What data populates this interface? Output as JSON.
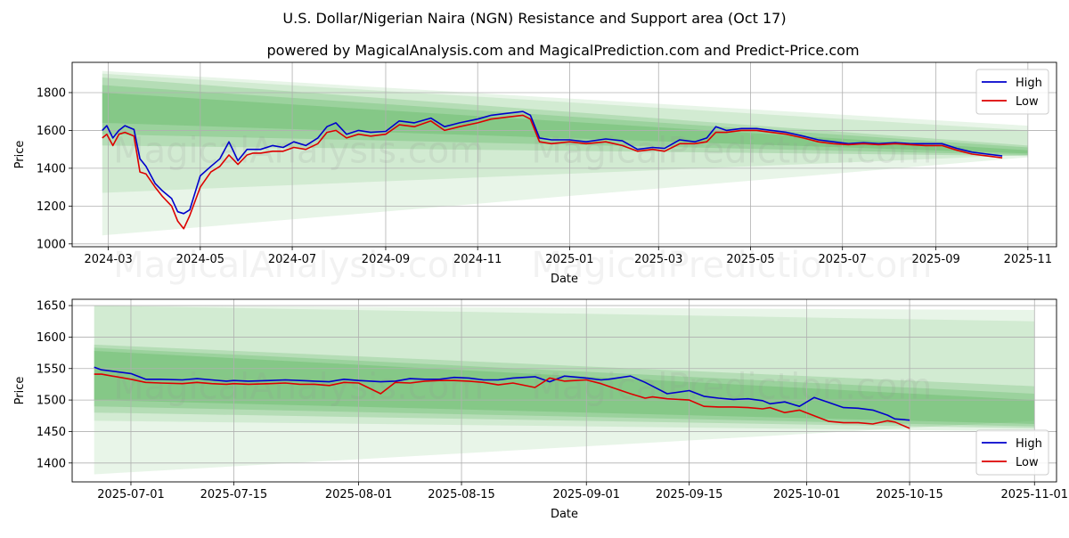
{
  "title": "U.S. Dollar/Nigerian Naira (NGN) Resistance and Support area (Oct 17)",
  "subtitle": "powered by MagicalAnalysis.com and MagicalPrediction.com and Predict-Price.com",
  "watermarks": [
    "MagicalAnalysis.com",
    "MagicalPrediction.com"
  ],
  "colors": {
    "high": "#0000cc",
    "low": "#dd0000",
    "band": "#4caf50",
    "grid": "#b0b0b0"
  },
  "chart_data": [
    {
      "type": "line",
      "panel": "top",
      "xlabel": "Date",
      "ylabel": "Price",
      "xlim": [
        "2024-02-06",
        "2025-11-20"
      ],
      "ylim": [
        985,
        1960
      ],
      "x_ticks": [
        "2024-03",
        "2024-05",
        "2024-07",
        "2024-09",
        "2024-11",
        "2025-01",
        "2025-03",
        "2025-05",
        "2025-07",
        "2025-09",
        "2025-11"
      ],
      "y_ticks": [
        1000,
        1200,
        1400,
        1600,
        1800
      ],
      "legend": {
        "position": "top-right",
        "entries": [
          "High",
          "Low"
        ]
      },
      "bands": [
        {
          "x0": "2024-02-26",
          "x1": "2025-11-01",
          "top": [
            1915,
            1625
          ],
          "bottom": [
            1045,
            1458
          ]
        },
        {
          "x0": "2024-02-26",
          "x1": "2025-11-01",
          "top": [
            1900,
            1600
          ],
          "bottom": [
            1270,
            1470
          ]
        },
        {
          "x0": "2024-02-26",
          "x1": "2025-11-01",
          "top": [
            1880,
            1520
          ],
          "bottom": [
            1520,
            1465
          ]
        },
        {
          "x0": "2024-02-26",
          "x1": "2025-11-01",
          "top": [
            1840,
            1510
          ],
          "bottom": [
            1580,
            1470
          ]
        },
        {
          "x0": "2024-02-26",
          "x1": "2025-11-01",
          "top": [
            1800,
            1495
          ],
          "bottom": [
            1640,
            1478
          ]
        }
      ],
      "series": [
        {
          "name": "High",
          "x": [
            "2024-02-26",
            "2024-02-29",
            "2024-03-04",
            "2024-03-08",
            "2024-03-12",
            "2024-03-18",
            "2024-03-22",
            "2024-03-26",
            "2024-04-01",
            "2024-04-06",
            "2024-04-12",
            "2024-04-16",
            "2024-04-20",
            "2024-04-24",
            "2024-05-01",
            "2024-05-08",
            "2024-05-14",
            "2024-05-20",
            "2024-05-26",
            "2024-06-01",
            "2024-06-05",
            "2024-06-10",
            "2024-06-18",
            "2024-06-25",
            "2024-07-02",
            "2024-07-10",
            "2024-07-18",
            "2024-07-24",
            "2024-07-30",
            "2024-08-06",
            "2024-08-14",
            "2024-08-22",
            "2024-09-01",
            "2024-09-10",
            "2024-09-20",
            "2024-10-01",
            "2024-10-10",
            "2024-10-20",
            "2024-11-01",
            "2024-11-10",
            "2024-11-20",
            "2024-12-01",
            "2024-12-06",
            "2024-12-12",
            "2024-12-20",
            "2025-01-01",
            "2025-01-12",
            "2025-01-25",
            "2025-02-05",
            "2025-02-15",
            "2025-02-25",
            "2025-03-05",
            "2025-03-15",
            "2025-03-25",
            "2025-04-02",
            "2025-04-08",
            "2025-04-15",
            "2025-04-25",
            "2025-05-05",
            "2025-05-15",
            "2025-05-25",
            "2025-06-05",
            "2025-06-15",
            "2025-06-25",
            "2025-07-05",
            "2025-07-15",
            "2025-07-25",
            "2025-08-05",
            "2025-08-15",
            "2025-08-25",
            "2025-09-05",
            "2025-09-15",
            "2025-09-25",
            "2025-10-05",
            "2025-10-15"
          ],
          "values": [
            1600,
            1625,
            1560,
            1600,
            1625,
            1605,
            1450,
            1410,
            1320,
            1280,
            1240,
            1170,
            1160,
            1180,
            1360,
            1410,
            1450,
            1540,
            1440,
            1500,
            1500,
            1500,
            1520,
            1510,
            1540,
            1520,
            1560,
            1620,
            1640,
            1580,
            1600,
            1590,
            1595,
            1650,
            1640,
            1665,
            1620,
            1640,
            1660,
            1680,
            1690,
            1700,
            1680,
            1560,
            1550,
            1550,
            1540,
            1555,
            1545,
            1500,
            1510,
            1505,
            1550,
            1540,
            1560,
            1620,
            1600,
            1610,
            1610,
            1600,
            1590,
            1570,
            1550,
            1540,
            1530,
            1535,
            1530,
            1535,
            1530,
            1530,
            1530,
            1505,
            1485,
            1475,
            1465
          ]
        },
        {
          "name": "Low",
          "x": [
            "2024-02-26",
            "2024-02-29",
            "2024-03-04",
            "2024-03-08",
            "2024-03-12",
            "2024-03-18",
            "2024-03-22",
            "2024-03-26",
            "2024-04-01",
            "2024-04-06",
            "2024-04-12",
            "2024-04-16",
            "2024-04-20",
            "2024-04-24",
            "2024-05-01",
            "2024-05-08",
            "2024-05-14",
            "2024-05-20",
            "2024-05-26",
            "2024-06-01",
            "2024-06-05",
            "2024-06-10",
            "2024-06-18",
            "2024-06-25",
            "2024-07-02",
            "2024-07-10",
            "2024-07-18",
            "2024-07-24",
            "2024-07-30",
            "2024-08-06",
            "2024-08-14",
            "2024-08-22",
            "2024-09-01",
            "2024-09-10",
            "2024-09-20",
            "2024-10-01",
            "2024-10-10",
            "2024-10-20",
            "2024-11-01",
            "2024-11-10",
            "2024-11-20",
            "2024-12-01",
            "2024-12-06",
            "2024-12-12",
            "2024-12-20",
            "2025-01-01",
            "2025-01-12",
            "2025-01-25",
            "2025-02-05",
            "2025-02-15",
            "2025-02-25",
            "2025-03-05",
            "2025-03-15",
            "2025-03-25",
            "2025-04-02",
            "2025-04-08",
            "2025-04-15",
            "2025-04-25",
            "2025-05-05",
            "2025-05-15",
            "2025-05-25",
            "2025-06-05",
            "2025-06-15",
            "2025-06-25",
            "2025-07-05",
            "2025-07-15",
            "2025-07-25",
            "2025-08-05",
            "2025-08-15",
            "2025-08-25",
            "2025-09-05",
            "2025-09-15",
            "2025-09-25",
            "2025-10-05",
            "2025-10-15"
          ],
          "values": [
            1560,
            1580,
            1520,
            1580,
            1590,
            1570,
            1380,
            1370,
            1300,
            1250,
            1200,
            1120,
            1080,
            1150,
            1300,
            1380,
            1410,
            1470,
            1420,
            1470,
            1480,
            1480,
            1490,
            1490,
            1510,
            1500,
            1530,
            1590,
            1600,
            1560,
            1580,
            1570,
            1580,
            1630,
            1620,
            1650,
            1600,
            1620,
            1640,
            1660,
            1670,
            1680,
            1660,
            1540,
            1530,
            1540,
            1530,
            1540,
            1520,
            1490,
            1500,
            1490,
            1530,
            1530,
            1540,
            1590,
            1590,
            1600,
            1600,
            1590,
            1580,
            1560,
            1540,
            1530,
            1525,
            1530,
            1525,
            1530,
            1525,
            1520,
            1520,
            1495,
            1475,
            1465,
            1455
          ]
        }
      ]
    },
    {
      "type": "line",
      "panel": "bottom",
      "xlabel": "Date",
      "ylabel": "Price",
      "xlim": [
        "2025-06-23",
        "2025-11-04"
      ],
      "ylim": [
        1370,
        1660
      ],
      "x_ticks": [
        "2025-07-01",
        "2025-07-15",
        "2025-08-01",
        "2025-08-15",
        "2025-09-01",
        "2025-09-15",
        "2025-10-01",
        "2025-10-15",
        "2025-11-01"
      ],
      "y_ticks": [
        1400,
        1450,
        1500,
        1550,
        1600,
        1650
      ],
      "legend": {
        "position": "bottom-right",
        "entries": [
          "High",
          "Low"
        ]
      },
      "bands": [
        {
          "x0": "2025-06-26",
          "x1": "2025-11-01",
          "top": [
            1650,
            1643
          ],
          "bottom": [
            1382,
            1467
          ]
        },
        {
          "x0": "2025-06-26",
          "x1": "2025-11-01",
          "top": [
            1650,
            1625
          ],
          "bottom": [
            1467,
            1450
          ]
        },
        {
          "x0": "2025-06-26",
          "x1": "2025-11-01",
          "top": [
            1588,
            1522
          ],
          "bottom": [
            1480,
            1455
          ]
        },
        {
          "x0": "2025-06-26",
          "x1": "2025-11-01",
          "top": [
            1583,
            1510
          ],
          "bottom": [
            1490,
            1458
          ]
        },
        {
          "x0": "2025-06-26",
          "x1": "2025-11-01",
          "top": [
            1578,
            1500
          ],
          "bottom": [
            1500,
            1462
          ]
        }
      ],
      "series": [
        {
          "name": "High",
          "x": [
            "2025-06-26",
            "2025-06-27",
            "2025-07-01",
            "2025-07-03",
            "2025-07-05",
            "2025-07-08",
            "2025-07-10",
            "2025-07-12",
            "2025-07-14",
            "2025-07-15",
            "2025-07-17",
            "2025-07-20",
            "2025-07-22",
            "2025-07-24",
            "2025-07-26",
            "2025-07-28",
            "2025-07-30",
            "2025-08-01",
            "2025-08-04",
            "2025-08-06",
            "2025-08-08",
            "2025-08-10",
            "2025-08-12",
            "2025-08-14",
            "2025-08-16",
            "2025-08-18",
            "2025-08-20",
            "2025-08-22",
            "2025-08-25",
            "2025-08-27",
            "2025-08-29",
            "2025-09-01",
            "2025-09-03",
            "2025-09-04",
            "2025-09-07",
            "2025-09-09",
            "2025-09-10",
            "2025-09-12",
            "2025-09-15",
            "2025-09-17",
            "2025-09-19",
            "2025-09-21",
            "2025-09-23",
            "2025-09-25",
            "2025-09-26",
            "2025-09-28",
            "2025-09-30",
            "2025-10-02",
            "2025-10-04",
            "2025-10-06",
            "2025-10-08",
            "2025-10-10",
            "2025-10-12",
            "2025-10-13",
            "2025-10-15"
          ],
          "values": [
            1552,
            1548,
            1542,
            1533,
            1533,
            1532,
            1534,
            1532,
            1530,
            1531,
            1530,
            1531,
            1532,
            1531,
            1530,
            1529,
            1533,
            1531,
            1529,
            1530,
            1534,
            1533,
            1533,
            1536,
            1535,
            1532,
            1532,
            1535,
            1537,
            1529,
            1538,
            1535,
            1532,
            1533,
            1538,
            1528,
            1522,
            1510,
            1515,
            1506,
            1503,
            1501,
            1502,
            1499,
            1494,
            1497,
            1490,
            1504,
            1496,
            1488,
            1487,
            1484,
            1476,
            1470,
            1468
          ]
        },
        {
          "name": "Low",
          "x": [
            "2025-06-26",
            "2025-06-27",
            "2025-07-01",
            "2025-07-03",
            "2025-07-05",
            "2025-07-08",
            "2025-07-10",
            "2025-07-12",
            "2025-07-14",
            "2025-07-15",
            "2025-07-17",
            "2025-07-20",
            "2025-07-22",
            "2025-07-24",
            "2025-07-26",
            "2025-07-28",
            "2025-07-30",
            "2025-08-01",
            "2025-08-04",
            "2025-08-06",
            "2025-08-08",
            "2025-08-10",
            "2025-08-12",
            "2025-08-14",
            "2025-08-16",
            "2025-08-18",
            "2025-08-20",
            "2025-08-22",
            "2025-08-25",
            "2025-08-27",
            "2025-08-29",
            "2025-09-01",
            "2025-09-03",
            "2025-09-04",
            "2025-09-07",
            "2025-09-09",
            "2025-09-10",
            "2025-09-12",
            "2025-09-15",
            "2025-09-17",
            "2025-09-19",
            "2025-09-21",
            "2025-09-23",
            "2025-09-25",
            "2025-09-26",
            "2025-09-28",
            "2025-09-30",
            "2025-10-02",
            "2025-10-04",
            "2025-10-06",
            "2025-10-08",
            "2025-10-10",
            "2025-10-12",
            "2025-10-13",
            "2025-10-15"
          ],
          "values": [
            1541,
            1541,
            1533,
            1528,
            1527,
            1526,
            1528,
            1526,
            1525,
            1526,
            1525,
            1526,
            1527,
            1525,
            1525,
            1523,
            1528,
            1527,
            1510,
            1528,
            1527,
            1530,
            1531,
            1531,
            1530,
            1528,
            1524,
            1527,
            1520,
            1535,
            1530,
            1532,
            1526,
            1522,
            1510,
            1503,
            1505,
            1502,
            1500,
            1490,
            1489,
            1489,
            1488,
            1486,
            1488,
            1480,
            1484,
            1475,
            1466,
            1464,
            1464,
            1462,
            1467,
            1465,
            1455
          ]
        }
      ]
    }
  ]
}
